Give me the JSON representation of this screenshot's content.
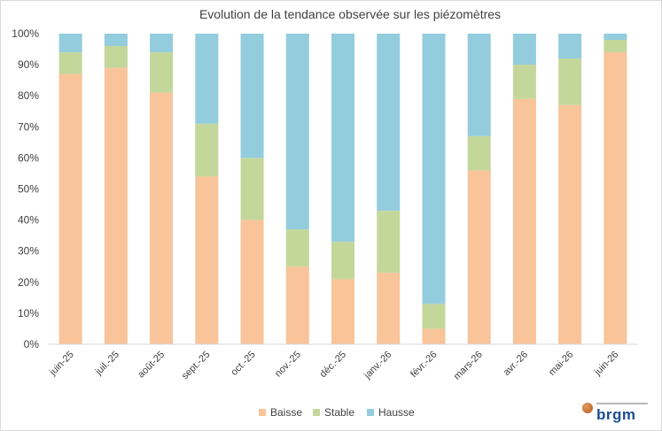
{
  "chart_data": {
    "type": "bar",
    "stacked": true,
    "normalized": true,
    "title": "Evolution de la tendance observée sur les piézomètres",
    "xlabel": "",
    "ylabel": "",
    "ylim": [
      0,
      100
    ],
    "yticks": [
      "0%",
      "10%",
      "20%",
      "30%",
      "40%",
      "50%",
      "60%",
      "70%",
      "80%",
      "90%",
      "100%"
    ],
    "grid": "vertical-bands",
    "legend_position": "bottom",
    "categories": [
      "juin-25",
      "juil.-25",
      "août-25",
      "sept.-25",
      "oct.-25",
      "nov.-25",
      "déc.-25",
      "janv.-26",
      "févr.-26",
      "mars-26",
      "avr.-26",
      "mai-26",
      "juin-26"
    ],
    "series": [
      {
        "name": "Baisse",
        "color": "#f9c49a",
        "values": [
          87,
          89,
          81,
          54,
          40,
          25,
          21,
          23,
          5,
          56,
          79,
          77,
          94
        ]
      },
      {
        "name": "Stable",
        "color": "#c4d79b",
        "values": [
          7,
          7,
          13,
          17,
          20,
          12,
          12,
          20,
          8,
          11,
          11,
          15,
          4
        ]
      },
      {
        "name": "Hausse",
        "color": "#93cddd",
        "values": [
          6,
          4,
          6,
          29,
          40,
          63,
          67,
          57,
          87,
          33,
          10,
          8,
          2
        ]
      }
    ]
  },
  "logo": {
    "name": "brgm-logo",
    "text": "brgm"
  }
}
